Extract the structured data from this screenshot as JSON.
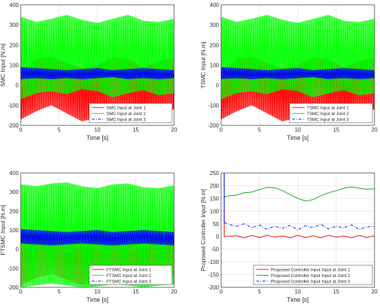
{
  "chart_data": [
    {
      "type": "line",
      "ylabel": "SMC Input [N.m]",
      "xlabel": "Time [s]",
      "xlim": [
        0,
        20
      ],
      "ylim": [
        -200,
        400
      ],
      "xticks": [
        "0",
        "5",
        "10",
        "15",
        "20"
      ],
      "yticks": [
        "-200",
        "-100",
        "0",
        "100",
        "200",
        "300",
        "400"
      ],
      "grid": true,
      "legend_position": "bottom-right",
      "series": [
        {
          "name": "SMC Input at Joint 1",
          "color": "#ff0000",
          "style": "solid",
          "x": [
            0,
            2,
            4,
            6,
            8,
            10,
            12,
            14,
            16,
            18,
            20
          ],
          "upper": [
            30,
            135,
            140,
            110,
            85,
            100,
            140,
            130,
            90,
            120,
            135
          ],
          "lower": [
            -170,
            -130,
            -100,
            -140,
            -180,
            -160,
            -120,
            -150,
            -190,
            -140,
            -120
          ]
        },
        {
          "name": "SMC Input at Joint 2",
          "color": "#00ff00",
          "style": "solid",
          "x": [
            0,
            2,
            4,
            6,
            8,
            10,
            12,
            14,
            16,
            18,
            20
          ],
          "upper": [
            340,
            315,
            330,
            350,
            325,
            310,
            330,
            350,
            320,
            315,
            330
          ],
          "lower": [
            -70,
            -40,
            -30,
            -45,
            -20,
            -30,
            -60,
            -40,
            -25,
            -50,
            -40
          ]
        },
        {
          "name": "SMC Input at Joint 3",
          "color": "#0000ff",
          "style": "dashdot",
          "x": [
            0,
            2,
            4,
            6,
            8,
            10,
            12,
            14,
            16,
            18,
            20
          ],
          "upper": [
            90,
            85,
            80,
            75,
            80,
            85,
            75,
            80,
            85,
            80,
            75
          ],
          "lower": [
            30,
            35,
            30,
            35,
            30,
            35,
            40,
            30,
            35,
            30,
            35
          ]
        }
      ]
    },
    {
      "type": "line",
      "ylabel": "TSMC Input [N.m]",
      "xlabel": "Time [s]",
      "xlim": [
        0,
        20
      ],
      "ylim": [
        -200,
        400
      ],
      "xticks": [
        "0",
        "5",
        "10",
        "15",
        "20"
      ],
      "yticks": [
        "-200",
        "-100",
        "0",
        "100",
        "200",
        "300",
        "400"
      ],
      "grid": true,
      "legend_position": "bottom-right",
      "series": [
        {
          "name": "TSMC Input at Joint 1",
          "color": "#ff0000",
          "style": "solid",
          "x": [
            0,
            2,
            4,
            6,
            8,
            10,
            12,
            14,
            16,
            18,
            20
          ],
          "upper": [
            30,
            135,
            140,
            110,
            85,
            100,
            140,
            130,
            90,
            120,
            135
          ],
          "lower": [
            -170,
            -130,
            -100,
            -140,
            -180,
            -160,
            -120,
            -150,
            -190,
            -140,
            -120
          ]
        },
        {
          "name": "TSMC Input at Joint 2",
          "color": "#00ff00",
          "style": "solid",
          "x": [
            0,
            2,
            4,
            6,
            8,
            10,
            12,
            14,
            16,
            18,
            20
          ],
          "upper": [
            340,
            315,
            330,
            350,
            325,
            310,
            330,
            350,
            320,
            315,
            330
          ],
          "lower": [
            -70,
            -40,
            -30,
            -45,
            -20,
            -30,
            -60,
            -40,
            -25,
            -50,
            -40
          ]
        },
        {
          "name": "TSMC Input at Joint 3",
          "color": "#0000ff",
          "style": "dashdot",
          "x": [
            0,
            2,
            4,
            6,
            8,
            10,
            12,
            14,
            16,
            18,
            20
          ],
          "upper": [
            90,
            85,
            80,
            75,
            80,
            85,
            75,
            80,
            85,
            80,
            75
          ],
          "lower": [
            30,
            35,
            30,
            35,
            30,
            35,
            40,
            30,
            35,
            30,
            35
          ]
        }
      ]
    },
    {
      "type": "line",
      "ylabel": "FTSMC Input [N.m]",
      "xlabel": "Time [s]",
      "xlim": [
        0,
        20
      ],
      "ylim": [
        -200,
        400
      ],
      "xticks": [
        "0",
        "5",
        "10",
        "15",
        "20"
      ],
      "yticks": [
        "-200",
        "-100",
        "0",
        "100",
        "200",
        "300",
        "400"
      ],
      "grid": true,
      "legend_position": "bottom-right",
      "series": [
        {
          "name": "FTSMC Input at Joint 1",
          "color": "#ff0000",
          "style": "solid",
          "x": [
            0,
            2,
            4,
            6,
            8,
            10,
            12,
            14,
            16,
            18,
            20
          ],
          "upper": [
            60,
            80,
            40,
            20,
            30,
            60,
            50,
            30,
            40,
            60,
            50
          ],
          "lower": [
            -190,
            -150,
            -130,
            -160,
            -190,
            -170,
            -140,
            -160,
            -190,
            -150,
            -140
          ]
        },
        {
          "name": "FTSMC Input at Joint 2",
          "color": "#00ff00",
          "style": "solid",
          "x": [
            0,
            2,
            4,
            6,
            8,
            10,
            12,
            14,
            16,
            18,
            20
          ],
          "upper": [
            340,
            330,
            345,
            350,
            330,
            320,
            340,
            345,
            325,
            320,
            335
          ],
          "lower": [
            -200,
            -190,
            -180,
            -190,
            -200,
            -195,
            -185,
            -190,
            -200,
            -190,
            -185
          ]
        },
        {
          "name": "FTSMC Input at Joint 3",
          "color": "#0000ff",
          "style": "dashdot",
          "x": [
            0,
            2,
            4,
            6,
            8,
            10,
            12,
            14,
            16,
            18,
            20
          ],
          "upper": [
            105,
            100,
            95,
            90,
            95,
            100,
            90,
            95,
            100,
            95,
            90
          ],
          "lower": [
            30,
            25,
            20,
            25,
            30,
            25,
            20,
            25,
            30,
            25,
            20
          ]
        }
      ]
    },
    {
      "type": "line",
      "ylabel": "Proposed Controller Input [N.m]",
      "xlabel": "Time [s]",
      "xlim": [
        0,
        20
      ],
      "ylim": [
        -200,
        250
      ],
      "xticks": [
        "0",
        "5",
        "10",
        "15",
        "20"
      ],
      "yticks": [
        "-200",
        "-150",
        "-100",
        "-50",
        "0",
        "50",
        "100",
        "150",
        "200",
        "250"
      ],
      "grid": true,
      "legend_position": "bottom-right",
      "series": [
        {
          "name": "Proposed Controller Input Input at Joint 1",
          "color": "#ff0000",
          "style": "solid",
          "x": [
            0.4,
            2,
            3,
            4,
            5,
            6,
            7,
            8,
            9,
            10,
            11,
            12,
            13,
            14,
            15,
            16,
            17,
            18,
            19,
            20
          ],
          "y": [
            0,
            3,
            -5,
            4,
            -4,
            5,
            -3,
            2,
            -5,
            5,
            -4,
            3,
            -5,
            5,
            -3,
            2,
            -5,
            4,
            -4,
            3
          ]
        },
        {
          "name": "Proposed Controller Input Input at Joint 2",
          "color": "#00aa00",
          "style": "solid",
          "x": [
            0.4,
            1,
            2,
            3,
            4,
            5,
            6,
            7,
            8,
            9,
            10,
            11,
            12,
            13,
            14,
            15,
            16,
            17,
            18,
            19,
            20
          ],
          "y": [
            155,
            160,
            163,
            172,
            175,
            185,
            193,
            192,
            180,
            165,
            150,
            140,
            145,
            160,
            172,
            180,
            190,
            195,
            190,
            186,
            188
          ]
        },
        {
          "name": "Proposed Controller Input Input at Joint 3",
          "color": "#0000ff",
          "style": "dashdot",
          "x": [
            0.4,
            1,
            2,
            3,
            4,
            5,
            6,
            7,
            8,
            9,
            10,
            11,
            12,
            13,
            14,
            15,
            16,
            17,
            18,
            19,
            20
          ],
          "y": [
            55,
            48,
            40,
            50,
            35,
            45,
            28,
            40,
            32,
            44,
            26,
            42,
            35,
            48,
            30,
            40,
            34,
            46,
            28,
            38,
            40
          ]
        }
      ]
    }
  ]
}
